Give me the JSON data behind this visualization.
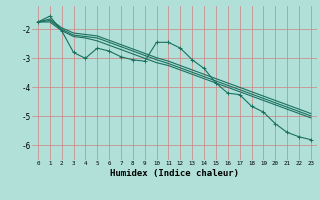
{
  "xlabel": "Humidex (Indice chaleur)",
  "background_color": "#b0e0d8",
  "grid_color": "#d08080",
  "line_color": "#1a7060",
  "x": [
    0,
    1,
    2,
    3,
    4,
    5,
    6,
    7,
    8,
    9,
    10,
    11,
    12,
    13,
    14,
    15,
    16,
    17,
    18,
    19,
    20,
    21,
    22,
    23
  ],
  "line1": [
    -1.75,
    -1.55,
    -2.05,
    -2.8,
    -3.0,
    -2.65,
    -2.75,
    -2.95,
    -3.05,
    -3.1,
    -2.45,
    -2.45,
    -2.65,
    -3.05,
    -3.35,
    -3.85,
    -4.2,
    -4.25,
    -4.65,
    -4.85,
    -5.25,
    -5.55,
    -5.7,
    -5.8
  ],
  "line2": [
    -1.75,
    -1.75,
    -2.05,
    -2.25,
    -2.3,
    -2.4,
    -2.55,
    -2.7,
    -2.85,
    -3.0,
    -3.15,
    -3.25,
    -3.4,
    -3.55,
    -3.7,
    -3.85,
    -4.0,
    -4.15,
    -4.3,
    -4.45,
    -4.6,
    -4.75,
    -4.9,
    -5.05
  ],
  "line3": [
    -1.75,
    -1.7,
    -2.0,
    -2.2,
    -2.25,
    -2.3,
    -2.45,
    -2.6,
    -2.75,
    -2.9,
    -3.05,
    -3.18,
    -3.33,
    -3.48,
    -3.63,
    -3.78,
    -3.93,
    -4.08,
    -4.23,
    -4.38,
    -4.53,
    -4.68,
    -4.83,
    -4.98
  ],
  "line4": [
    -1.75,
    -1.65,
    -1.95,
    -2.13,
    -2.18,
    -2.23,
    -2.38,
    -2.53,
    -2.68,
    -2.83,
    -2.98,
    -3.1,
    -3.25,
    -3.4,
    -3.55,
    -3.7,
    -3.85,
    -4.0,
    -4.15,
    -4.3,
    -4.45,
    -4.6,
    -4.75,
    -4.9
  ],
  "xlim": [
    -0.5,
    23.5
  ],
  "ylim": [
    -6.5,
    -1.2
  ],
  "yticks": [
    -6,
    -5,
    -4,
    -3,
    -2
  ],
  "xtick_fontsize": 4.2,
  "ytick_fontsize": 5.5,
  "xlabel_fontsize": 6.5
}
